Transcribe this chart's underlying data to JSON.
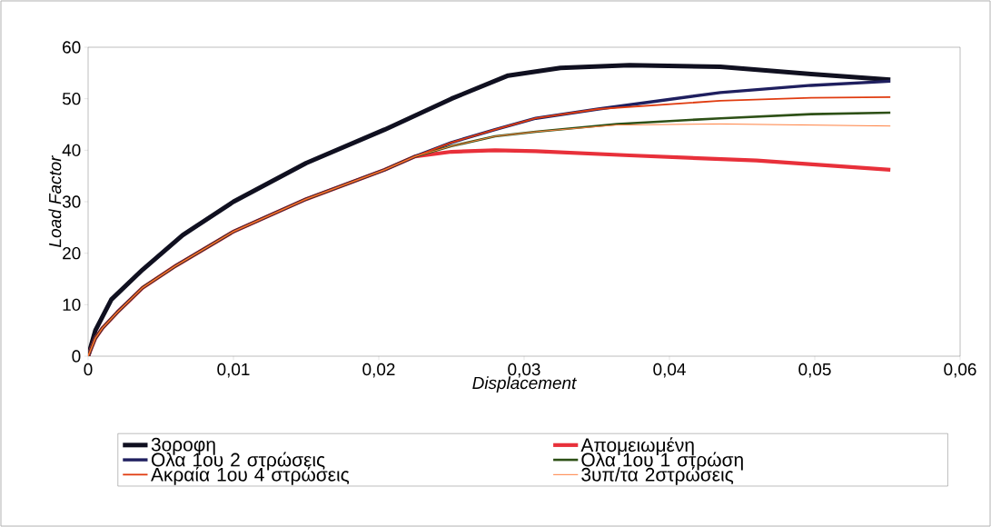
{
  "chart_data": {
    "type": "line",
    "xlabel": "Displacement",
    "ylabel": "Load Factor",
    "xlim": [
      0,
      0.06
    ],
    "ylim": [
      0,
      60
    ],
    "xticks": [
      0,
      {
        "value": 0.01,
        "label": "0,01"
      },
      {
        "value": 0.02,
        "label": "0,02"
      },
      {
        "value": 0.03,
        "label": "0,03"
      },
      {
        "value": 0.04,
        "label": "0,04"
      },
      {
        "value": 0.05,
        "label": "0,05"
      },
      {
        "value": 0.06,
        "label": "0,06"
      }
    ],
    "yticks": [
      0,
      10,
      20,
      30,
      40,
      50,
      60
    ],
    "grid": false,
    "legend": "bottom",
    "marker": "none",
    "line_style": "solid",
    "series": [
      {
        "name": "3οροφη",
        "color": "#101020",
        "x": [
          0,
          0.0005,
          0.0016,
          0.00375,
          0.0065,
          0.01,
          0.015,
          0.0204,
          0.025,
          0.0289,
          0.0325,
          0.03725,
          0.0435,
          0.04975,
          0.0552
        ],
        "values": [
          0,
          5,
          11,
          16.8,
          23.5,
          30,
          37.5,
          44,
          50,
          54.5,
          56,
          56.5,
          56.2,
          54.8,
          53.7
        ]
      },
      {
        "name": "Απομειωμένη",
        "color": "#e8303a",
        "x": [
          0,
          0.0005,
          0.001,
          0.002,
          0.00375,
          0.006,
          0.01,
          0.015,
          0.0204,
          0.0225,
          0.025,
          0.028,
          0.0308,
          0.03725,
          0.046,
          0.0552
        ],
        "values": [
          0,
          3.5,
          5.5,
          8.5,
          13.3,
          17.5,
          24.2,
          30.5,
          36.2,
          38.8,
          39.7,
          40,
          39.8,
          39,
          38,
          36.2
        ]
      },
      {
        "name": "Ολα 1ου 2 στρώσεις",
        "color": "#1f1f5f",
        "x": [
          0,
          0.0005,
          0.001,
          0.002,
          0.00375,
          0.006,
          0.01,
          0.015,
          0.0204,
          0.0225,
          0.025,
          0.028,
          0.0308,
          0.0351,
          0.0435,
          0.04975,
          0.0552
        ],
        "values": [
          0,
          3.5,
          5.5,
          8.5,
          13.3,
          17.5,
          24.2,
          30.5,
          36.2,
          38.8,
          41.5,
          44,
          46.2,
          48,
          51.2,
          52.6,
          53.4
        ]
      },
      {
        "name": "Ολα 1ου 1 στρώση",
        "color": "#2d5016",
        "x": [
          0,
          0.0005,
          0.001,
          0.002,
          0.00375,
          0.006,
          0.01,
          0.015,
          0.0204,
          0.0225,
          0.025,
          0.028,
          0.0308,
          0.0364,
          0.0435,
          0.04975,
          0.0552
        ],
        "values": [
          0,
          3.5,
          5.5,
          8.5,
          13.3,
          17.5,
          24.2,
          30.5,
          36.2,
          38.8,
          40.8,
          42.7,
          43.6,
          45.1,
          46.2,
          47,
          47.3
        ]
      },
      {
        "name": "Ακραία 1ου 4 στρώσεις",
        "color": "#e03c10",
        "x": [
          0,
          0.0005,
          0.001,
          0.002,
          0.00375,
          0.006,
          0.01,
          0.015,
          0.0204,
          0.0225,
          0.025,
          0.028,
          0.0308,
          0.0351,
          0.0435,
          0.04975,
          0.0552
        ],
        "values": [
          0,
          3.5,
          5.5,
          8.5,
          13.3,
          17.5,
          24.2,
          30.5,
          36.2,
          38.8,
          41.5,
          44,
          46.2,
          48,
          49.6,
          50.2,
          50.3
        ]
      },
      {
        "name": "3υπ/τα 2στρώσεις",
        "color": "#ff8040",
        "x": [
          0,
          0.0005,
          0.001,
          0.002,
          0.00375,
          0.006,
          0.01,
          0.015,
          0.0204,
          0.0225,
          0.025,
          0.028,
          0.0308,
          0.0364,
          0.0435,
          0.0552
        ],
        "values": [
          0,
          3.5,
          5.5,
          8.5,
          13.3,
          17.5,
          24.2,
          30.5,
          36.2,
          38.8,
          40.8,
          42.7,
          43.6,
          44.9,
          45.1,
          44.7
        ]
      }
    ]
  }
}
